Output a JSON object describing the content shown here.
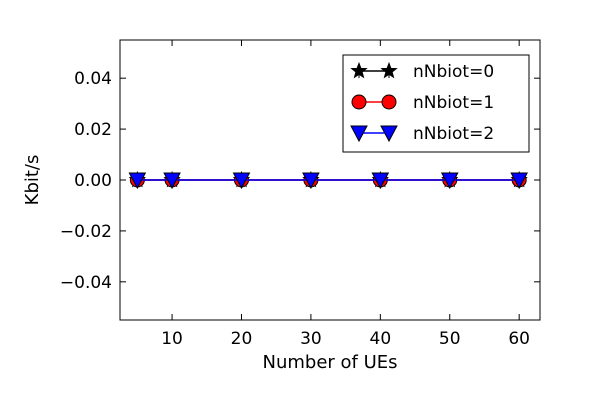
{
  "chart_data": {
    "type": "line",
    "title": "",
    "xlabel": "Number of UEs",
    "ylabel": "Kbit/s",
    "x": [
      5,
      10,
      20,
      30,
      40,
      50,
      60
    ],
    "xlim": [
      2.5,
      63
    ],
    "ylim": [
      -0.055,
      0.055
    ],
    "xticks": [
      10,
      20,
      30,
      40,
      50,
      60
    ],
    "yticks": [
      0.04,
      0.02,
      0.0,
      -0.02,
      -0.04
    ],
    "ytick_labels": [
      "0.04",
      "0.02",
      "0.00",
      "−0.02",
      "−0.04"
    ],
    "legend_position": "top-right",
    "grid": false,
    "series": [
      {
        "name": "nNbiot=0",
        "values": [
          0,
          0,
          0,
          0,
          0,
          0,
          0
        ],
        "color": "#000000",
        "marker": "star"
      },
      {
        "name": "nNbiot=1",
        "values": [
          0,
          0,
          0,
          0,
          0,
          0,
          0
        ],
        "color": "#ff0000",
        "marker": "circle"
      },
      {
        "name": "nNbiot=2",
        "values": [
          0,
          0,
          0,
          0,
          0,
          0,
          0
        ],
        "color": "#0000ff",
        "marker": "triangle-down"
      }
    ]
  }
}
